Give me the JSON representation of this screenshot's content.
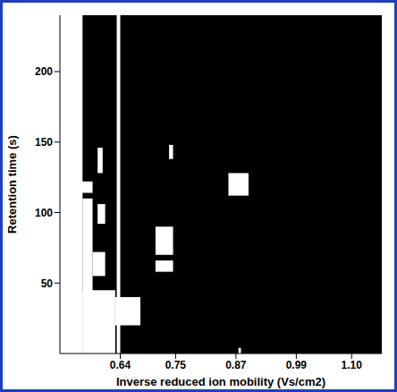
{
  "chart_data": {
    "type": "heatmap",
    "x_label": "Inverse reduced ion mobility (Vs/cm2)",
    "y_label": "Retention time (s)",
    "xlim": [
      0.52,
      1.16
    ],
    "ylim": [
      0,
      240
    ],
    "xticks": [
      0.64,
      0.75,
      0.87,
      0.99,
      {
        "value": 1.1,
        "label": "1.10"
      }
    ],
    "yticks": [
      50,
      100,
      150,
      200
    ],
    "grid": false,
    "color": "#ffffff",
    "cells": [
      {
        "x0": 0.52,
        "x1": 0.565,
        "y0": 0,
        "y1": 240
      },
      {
        "x0": 0.565,
        "x1": 0.585,
        "y0": 0,
        "y1": 110
      },
      {
        "x0": 0.52,
        "x1": 0.585,
        "y0": 114,
        "y1": 122
      },
      {
        "x0": 0.595,
        "x1": 0.605,
        "y0": 128,
        "y1": 146
      },
      {
        "x0": 0.595,
        "x1": 0.61,
        "y0": 92,
        "y1": 106
      },
      {
        "x0": 0.585,
        "x1": 0.61,
        "y0": 55,
        "y1": 72
      },
      {
        "x0": 0.565,
        "x1": 0.63,
        "y0": 0,
        "y1": 45
      },
      {
        "x0": 0.63,
        "x1": 0.68,
        "y0": 20,
        "y1": 40
      },
      {
        "x0": 0.633,
        "x1": 0.64,
        "y0": 0,
        "y1": 240
      },
      {
        "x0": 0.737,
        "x1": 0.745,
        "y0": 138,
        "y1": 148
      },
      {
        "x0": 0.71,
        "x1": 0.745,
        "y0": 70,
        "y1": 90
      },
      {
        "x0": 0.71,
        "x1": 0.745,
        "y0": 58,
        "y1": 66
      },
      {
        "x0": 0.855,
        "x1": 0.895,
        "y0": 112,
        "y1": 128
      },
      {
        "x0": 0.875,
        "x1": 0.88,
        "y0": 0,
        "y1": 4
      }
    ]
  }
}
